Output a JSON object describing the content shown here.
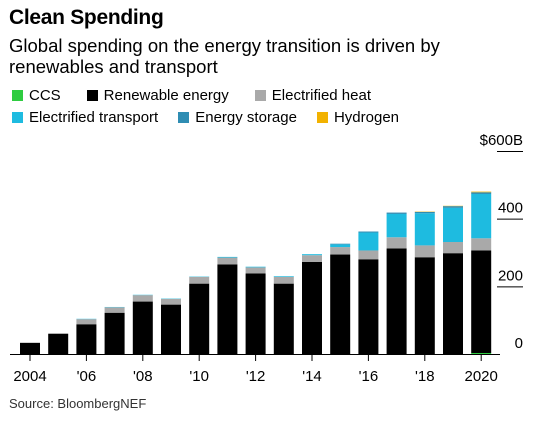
{
  "title": "Clean Spending",
  "subtitle": "Global spending on the energy transition is driven by renewables and transport",
  "source": "Source: BloombergNEF",
  "colors": {
    "CCS": "#2ecc40",
    "Renewable energy": "#000000",
    "Electrified heat": "#a9a9a9",
    "Electrified transport": "#1ebbe0",
    "Energy storage": "#2f8db3",
    "Hydrogen": "#f2b200"
  },
  "chart_data": {
    "type": "bar",
    "stacked": true,
    "categories": [
      "2004",
      "2005",
      "2006",
      "2007",
      "2008",
      "2009",
      "2010",
      "2011",
      "2012",
      "2013",
      "2014",
      "2015",
      "2016",
      "2017",
      "2018",
      "2019",
      "2020"
    ],
    "series": [
      {
        "name": "CCS",
        "values": [
          0,
          0,
          0,
          0,
          0,
          0,
          0,
          0,
          0,
          0,
          0,
          0,
          0,
          0,
          0,
          0,
          3
        ]
      },
      {
        "name": "Renewable energy",
        "values": [
          33,
          60,
          88,
          122,
          155,
          146,
          208,
          265,
          238,
          208,
          272,
          294,
          280,
          312,
          286,
          298,
          303
        ]
      },
      {
        "name": "Electrified heat",
        "values": [
          0,
          0,
          15,
          16,
          19,
          17,
          20,
          20,
          18,
          20,
          20,
          22,
          26,
          33,
          35,
          33,
          36
        ]
      },
      {
        "name": "Electrified transport",
        "values": [
          0,
          0,
          1,
          1,
          1,
          1,
          1,
          2,
          2,
          2,
          3,
          8,
          53,
          69,
          95,
          101,
          131
        ]
      },
      {
        "name": "Energy storage",
        "values": [
          0,
          0,
          0,
          0,
          0,
          0,
          0,
          0,
          0,
          0,
          0,
          2,
          3,
          4,
          4,
          5,
          5
        ]
      },
      {
        "name": "Hydrogen",
        "values": [
          0,
          0,
          0,
          0,
          0,
          0,
          0,
          0,
          0,
          0,
          0,
          0,
          0,
          0,
          1,
          1,
          2
        ]
      }
    ],
    "legend": [
      "CCS",
      "Renewable energy",
      "Electrified heat",
      "Electrified transport",
      "Energy storage",
      "Hydrogen"
    ],
    "x_tick_labels": [
      "2004",
      "'06",
      "'08",
      "'10",
      "'12",
      "'14",
      "'16",
      "'18",
      "2020"
    ],
    "y_ticks": [
      0,
      200,
      400,
      600
    ],
    "y_tick_labels": [
      "0",
      "200",
      "400",
      "$600B"
    ],
    "ylim": [
      0,
      600
    ],
    "grid": false,
    "legend_position": "top"
  }
}
